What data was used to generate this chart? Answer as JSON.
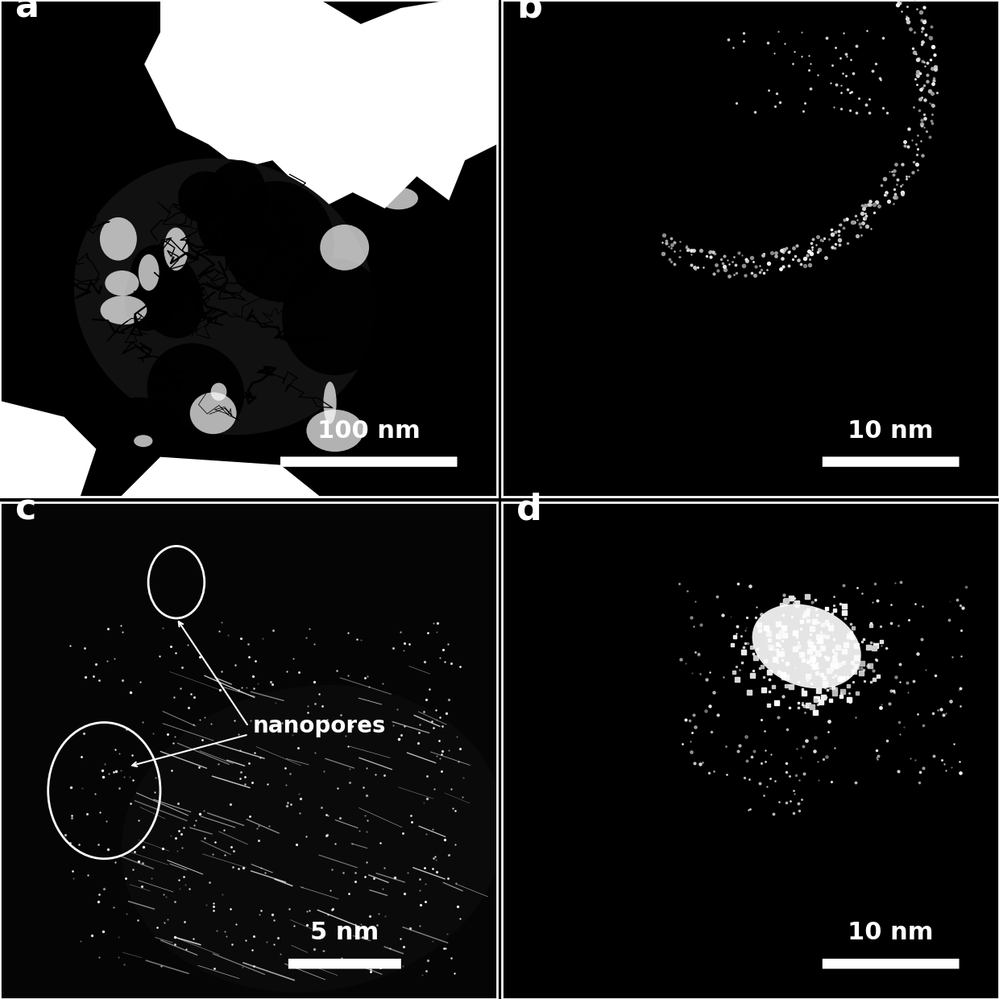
{
  "figure_size": [
    12.4,
    12.41
  ],
  "dpi": 100,
  "bg_color": "#000000",
  "panels": [
    "a",
    "b",
    "c",
    "d"
  ],
  "scale_bar_labels": [
    "100 nm",
    "10 nm",
    "5 nm",
    "10 nm"
  ],
  "annotation_c": "nanopores",
  "grid_color": "#ffffff",
  "label_fontsize": 32,
  "scalebar_fontsize": 22,
  "annotation_fontsize": 20,
  "border_color": "#ffffff",
  "border_width": 2
}
